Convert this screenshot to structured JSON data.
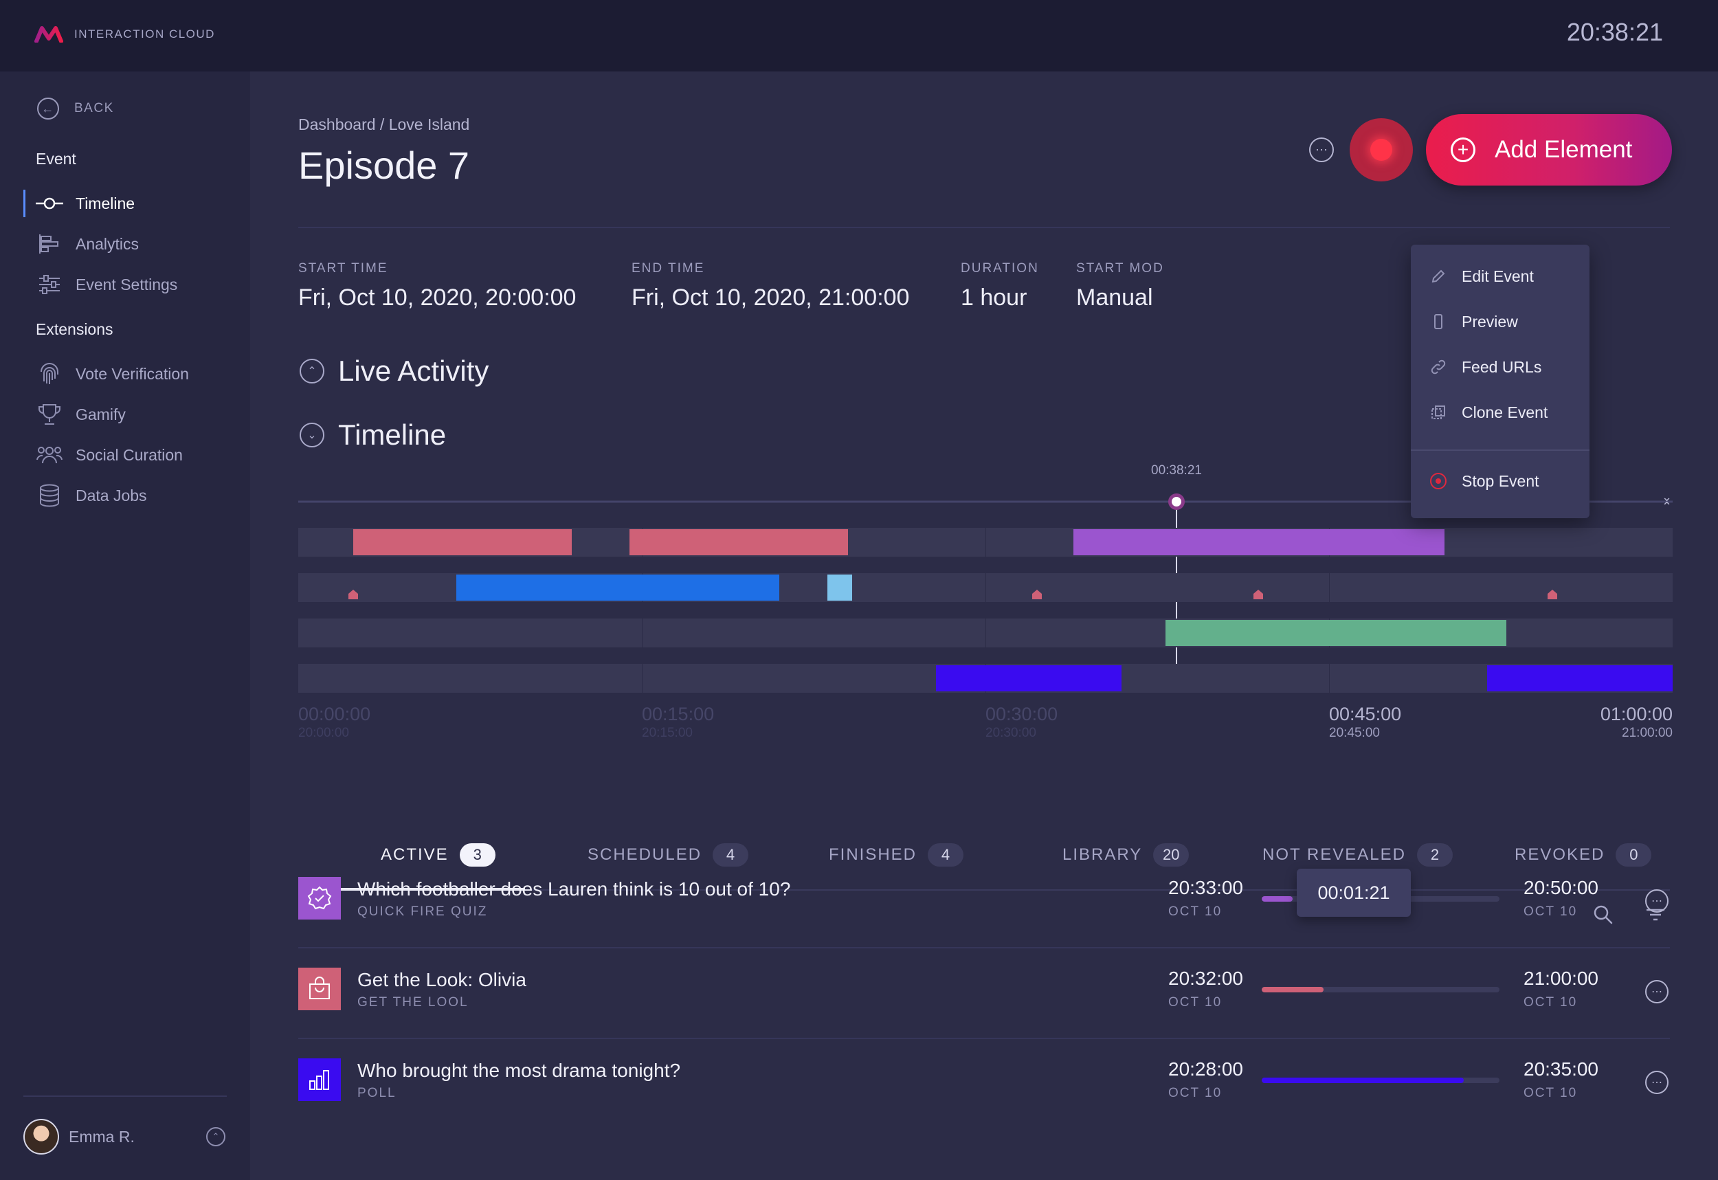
{
  "app": {
    "name": "INTERACTION CLOUD",
    "clock": "20:38:21"
  },
  "sidebar": {
    "back_label": "BACK",
    "event_section": "Event",
    "event_items": [
      {
        "label": "Timeline",
        "icon": "timeline-icon",
        "active": true
      },
      {
        "label": "Analytics",
        "icon": "analytics-icon",
        "active": false
      },
      {
        "label": "Event Settings",
        "icon": "sliders-icon",
        "active": false
      }
    ],
    "extensions_section": "Extensions",
    "extension_items": [
      {
        "label": "Vote Verification",
        "icon": "fingerprint-icon"
      },
      {
        "label": "Gamify",
        "icon": "trophy-icon"
      },
      {
        "label": "Social Curation",
        "icon": "users-icon"
      },
      {
        "label": "Data Jobs",
        "icon": "database-icon"
      }
    ],
    "user": {
      "name": "Emma R."
    }
  },
  "header": {
    "breadcrumb": "Dashboard / Love Island",
    "title": "Episode 7",
    "add_button_label": "Add Element"
  },
  "event_meta": [
    {
      "label": "START TIME",
      "value": "Fri, Oct 10, 2020, 20:00:00"
    },
    {
      "label": "END TIME",
      "value": "Fri, Oct 10, 2020, 21:00:00"
    },
    {
      "label": "DURATION",
      "value": "1 hour"
    },
    {
      "label": "START MOD",
      "value": "Manual"
    }
  ],
  "sections": {
    "live_activity": "Live Activity",
    "timeline": "Timeline"
  },
  "menu": {
    "items": [
      {
        "label": "Edit Event",
        "icon": "pencil-icon"
      },
      {
        "label": "Preview",
        "icon": "phone-icon"
      },
      {
        "label": "Feed URLs",
        "icon": "link-icon"
      },
      {
        "label": "Clone Event",
        "icon": "clone-icon"
      }
    ],
    "stop_label": "Stop Event"
  },
  "timeline": {
    "playhead_label": "00:38:21",
    "playhead_progress": 0.639,
    "ticks": [
      {
        "time": "00:00:00",
        "clock": "20:00:00",
        "past": true
      },
      {
        "time": "00:15:00",
        "clock": "20:15:00",
        "past": true
      },
      {
        "time": "00:30:00",
        "clock": "20:30:00",
        "past": true
      },
      {
        "time": "00:45:00",
        "clock": "20:45:00",
        "past": false
      },
      {
        "time": "01:00:00",
        "clock": "21:00:00",
        "past": false
      }
    ],
    "colors": {
      "pink": "#cf6177",
      "purple": "#9b55cf",
      "blue": "#1e6fe6",
      "lightblue": "#7ec4ec",
      "green": "#63b08c",
      "indigo": "#3a0bf0"
    }
  },
  "tabs": [
    {
      "label": "ACTIVE",
      "count": "3",
      "active": true
    },
    {
      "label": "SCHEDULED",
      "count": "4",
      "active": false
    },
    {
      "label": "FINISHED",
      "count": "4",
      "active": false
    },
    {
      "label": "LIBRARY",
      "count": "20",
      "active": false
    },
    {
      "label": "NOT REVEALED",
      "count": "2",
      "active": false
    },
    {
      "label": "REVOKED",
      "count": "0",
      "active": false
    }
  ],
  "rows": [
    {
      "title": "Which footballer does Lauren think is 10 out of 10?",
      "type": "QUICK FIRE QUIZ",
      "start_time": "20:33:00",
      "start_date": "OCT 10",
      "end_time": "20:50:00",
      "end_date": "OCT 10",
      "progress": 0.13,
      "color": "#9b55cf",
      "icon": "quiz-badge-icon",
      "tooltip": "00:01:21"
    },
    {
      "title": "Get the Look: Olivia",
      "type": "GET THE LOOL",
      "start_time": "20:32:00",
      "start_date": "OCT 10",
      "end_time": "21:00:00",
      "end_date": "OCT 10",
      "progress": 0.26,
      "color": "#cf6177",
      "icon": "shopping-bag-icon"
    },
    {
      "title": "Who brought the most drama tonight?",
      "type": "POLL",
      "start_time": "20:28:00",
      "start_date": "OCT 10",
      "end_time": "20:35:00",
      "end_date": "OCT 10",
      "progress": 0.85,
      "color": "#3a0bf0",
      "icon": "poll-chart-icon"
    }
  ]
}
